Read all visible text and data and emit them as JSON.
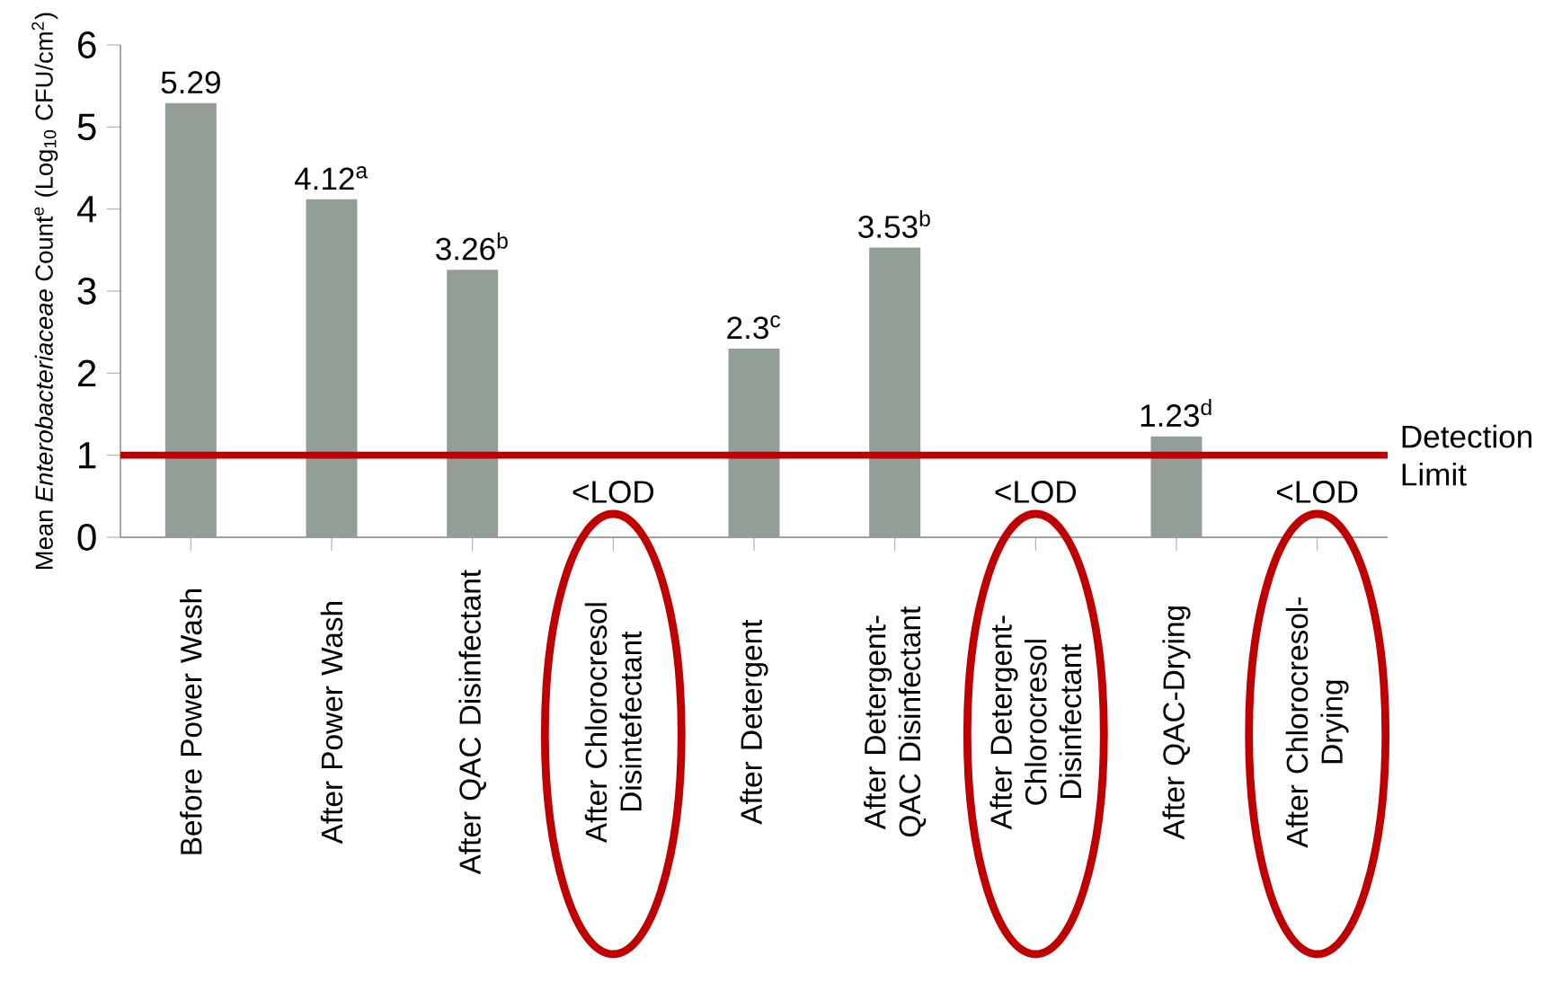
{
  "chart_data": {
    "type": "bar",
    "categories": [
      "Before Power Wash",
      "After Power Wash",
      "After QAC Disinfectant",
      "After Chlorocresol Disintefectant",
      "After Detergent",
      "After Detergent-QAC Disinfectant",
      "After Detergent-Chlorocresol Disinfectant",
      "After QAC-Drying",
      "After Chlorocresol-Drying"
    ],
    "values": [
      5.29,
      4.12,
      3.26,
      null,
      2.3,
      3.53,
      null,
      1.23,
      null
    ],
    "value_labels": [
      "5.29",
      "4.12$^{a}$",
      "3.26$^{b}$",
      "<LOD",
      "2.3$^{c}$",
      "3.53$^{b}$",
      "<LOD",
      "1.23$^{d}$",
      "<LOD"
    ],
    "color": "#939f96",
    "ylabel": "Mean *Enterobacteriaceae* Count$^{e}$ (Log$_{10}$ CFU/cm$^{2}$)",
    "ylim": [
      0,
      6
    ],
    "yticks": [
      0,
      1,
      2,
      3,
      4,
      5,
      6
    ],
    "ref_lines": [
      {
        "axis": "y",
        "value": 1,
        "label": "Detection Limit",
        "color": "#c00000"
      }
    ]
  }
}
